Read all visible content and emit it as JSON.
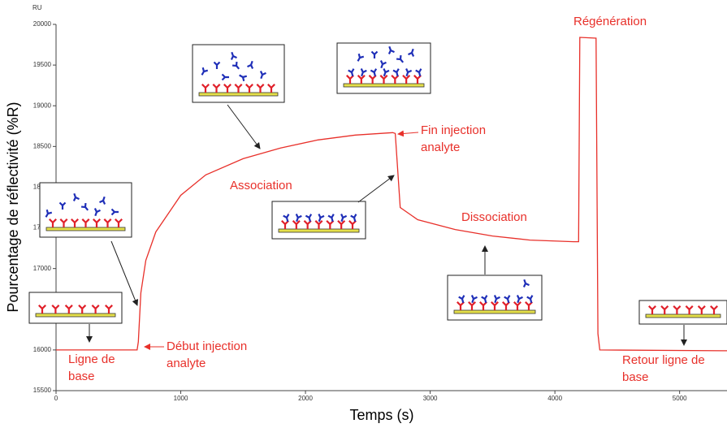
{
  "chart_data": {
    "type": "line",
    "unit_label": "RU",
    "y_label": "Pourcentage de réflectivité (%R)",
    "x_label": "Temps (s)",
    "x": [
      0,
      650,
      660,
      680,
      720,
      800,
      1000,
      1200,
      1500,
      1800,
      2100,
      2400,
      2700,
      2720,
      2760,
      2900,
      3200,
      3500,
      3800,
      4150,
      4190,
      4200,
      4330,
      4345,
      4360,
      5380
    ],
    "values": [
      16000,
      16000,
      16100,
      16700,
      17100,
      17450,
      17900,
      18150,
      18350,
      18480,
      18580,
      18640,
      18670,
      18660,
      17750,
      17600,
      17480,
      17400,
      17350,
      17330,
      17330,
      19840,
      19830,
      16200,
      16000,
      15990
    ],
    "color": "#e8302a",
    "xlim": [
      0,
      5380
    ],
    "ylim": [
      15500,
      20000
    ],
    "xticks": [
      0,
      1000,
      2000,
      3000,
      4000,
      5000
    ],
    "yticks": [
      15500,
      16000,
      16500,
      17000,
      17500,
      18000,
      18500,
      19000,
      19500,
      20000
    ],
    "annotations": [
      {
        "lines": [
          "Ligne de",
          "base"
        ]
      },
      {
        "lines": [
          "Début injection",
          "analyte"
        ]
      },
      {
        "lines": [
          "Association"
        ]
      },
      {
        "lines": [
          "Fin injection",
          "analyte"
        ]
      },
      {
        "lines": [
          "Dissociation"
        ]
      },
      {
        "lines": [
          "Régénération"
        ]
      },
      {
        "lines": [
          "Retour ligne de",
          "base"
        ]
      }
    ]
  }
}
